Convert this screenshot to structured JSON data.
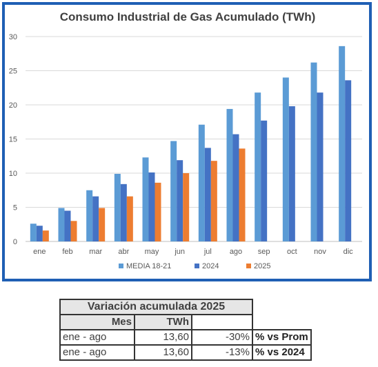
{
  "chart_data": {
    "type": "bar",
    "title": "Consumo Industrial de Gas Acumulado (TWh)",
    "categories": [
      "ene",
      "feb",
      "mar",
      "abr",
      "may",
      "jun",
      "jul",
      "ago",
      "sep",
      "oct",
      "nov",
      "dic"
    ],
    "ylim": [
      0,
      30
    ],
    "yticks": [
      "0",
      "5",
      "10",
      "15",
      "20",
      "25",
      "30"
    ],
    "grid": true,
    "legend_position": "bottom",
    "series": [
      {
        "name": "MEDIA 18-21",
        "color": "#5b9bd5",
        "values": [
          2.6,
          4.9,
          7.5,
          9.9,
          12.3,
          14.7,
          17.1,
          19.4,
          21.8,
          24.0,
          26.2,
          28.6
        ]
      },
      {
        "name": "2024",
        "color": "#4472c4",
        "values": [
          2.3,
          4.5,
          6.6,
          8.4,
          10.1,
          11.9,
          13.7,
          15.7,
          17.7,
          19.8,
          21.8,
          23.6
        ]
      },
      {
        "name": "2025",
        "color": "#ed7d31",
        "values": [
          1.6,
          3.0,
          4.9,
          6.6,
          8.6,
          10.0,
          11.8,
          13.6,
          null,
          null,
          null,
          null
        ]
      }
    ]
  },
  "table": {
    "title": "Variación acumulada 2025",
    "col_mes": "Mes",
    "col_twh": "TWh",
    "rows": [
      {
        "mes": "ene - ago",
        "twh": "13,60",
        "pct": "-30%",
        "note": "% vs Prom"
      },
      {
        "mes": "ene - ago",
        "twh": "13,60",
        "pct": "-13%",
        "note": "% vs 2024"
      }
    ]
  }
}
